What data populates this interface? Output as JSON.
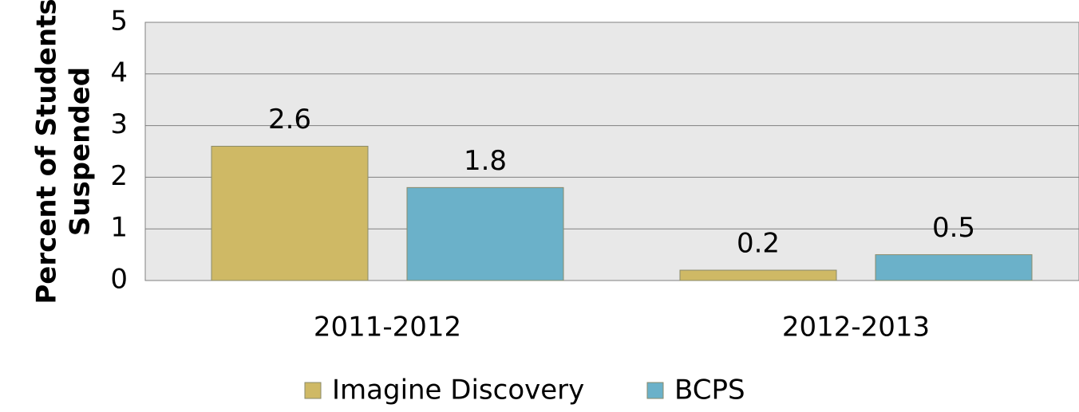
{
  "chart_data": {
    "type": "bar",
    "y_label": [
      "Percent of Students",
      "Suspended"
    ],
    "categories": [
      "2011-2012",
      "2012-2013"
    ],
    "series": [
      {
        "name": "Imagine Discovery",
        "color": "#cfb965",
        "values": [
          2.6,
          0.2
        ]
      },
      {
        "name": "BCPS",
        "color": "#6bb1c9",
        "values": [
          1.8,
          0.5
        ]
      }
    ],
    "ylim": [
      0,
      5
    ],
    "yticks": [
      0,
      1,
      2,
      3,
      4,
      5
    ],
    "grid": true,
    "legend": "bottom"
  }
}
